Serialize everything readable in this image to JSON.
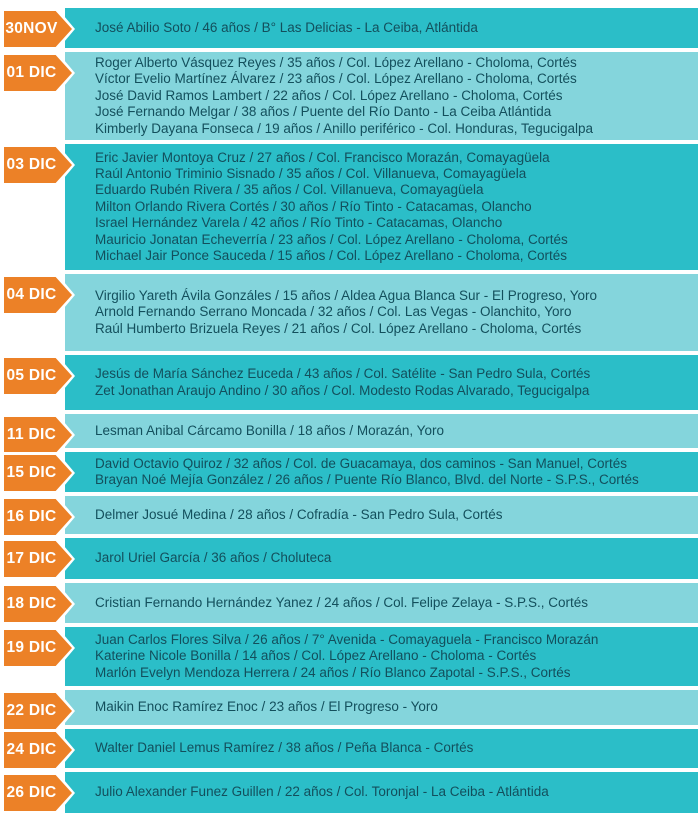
{
  "colors": {
    "orange": "#EC8127",
    "teal_dark": "#2BBEC8",
    "teal_light": "#84D5DC",
    "text": "#134F5C",
    "badge_text": "#FFFFFF"
  },
  "timeline": {
    "entries": [
      {
        "date": "30NOV",
        "tone": "dark",
        "lines": [
          "José Abilio Soto / 46 años / B° Las Delicias - La Ceiba, Atlántida"
        ]
      },
      {
        "date": "01 DIC",
        "tone": "light",
        "lines": [
          "Roger Alberto Vásquez Reyes / 35 años / Col. López Arellano - Choloma, Cortés",
          "Víctor Evelio Martínez Álvarez / 23 años / Col. López Arellano - Choloma, Cortés",
          "José David Ramos Lambert / 22 años / Col. López Arellano - Choloma, Cortés",
          "José Fernando Melgar / 38 años / Puente del Río Danto - La Ceiba Atlántida",
          "Kimberly Dayana Fonseca / 19 años / Anillo periférico - Col. Honduras, Tegucigalpa"
        ]
      },
      {
        "date": "03 DIC",
        "tone": "dark",
        "lines": [
          "Eric Javier Montoya Cruz / 27 años / Col. Francisco Morazán, Comayagüela",
          "Raúl Antonio Triminio Sisnado / 35 años / Col. Villanueva, Comayagüela",
          "Eduardo Rubén Rivera / 35 años / Col. Villanueva, Comayagüela",
          "Milton Orlando Rivera Cortés / 30 años / Río Tinto - Catacamas, Olancho",
          "Israel Hernández Varela / 42 años / Río Tinto - Catacamas, Olancho",
          "Mauricio Jonatan Echeverría / 23 años / Col. López Arellano - Choloma, Cortés",
          "Michael Jair Ponce Sauceda / 15 años / Col. López Arellano - Choloma, Cortés"
        ]
      },
      {
        "date": "04 DIC",
        "tone": "light",
        "lines": [
          "Virgilio Yareth Ávila Gonzáles / 15 años / Aldea Agua Blanca Sur - El Progreso, Yoro",
          "Arnold Fernando Serrano Moncada / 32 años / Col. Las Vegas - Olanchito, Yoro",
          "Raúl Humberto Brizuela Reyes / 21 años / Col. López Arellano - Choloma, Cortés"
        ]
      },
      {
        "date": "05 DIC",
        "tone": "dark",
        "lines": [
          "Jesús de María Sánchez Euceda / 43 años / Col. Satélite - San Pedro Sula, Cortés",
          "Zet Jonathan Araujo Andino / 30 años / Col. Modesto Rodas Alvarado, Tegucigalpa"
        ]
      },
      {
        "date": "11 DIC",
        "tone": "light",
        "lines": [
          "Lesman Anibal Cárcamo Bonilla / 18 años / Morazán, Yoro"
        ]
      },
      {
        "date": "15 DIC",
        "tone": "dark",
        "lines": [
          "David Octavio Quiroz / 32 años / Col. de Guacamaya, dos caminos - San Manuel, Cortés",
          "Brayan Noé Mejía González / 26 años / Puente Río Blanco, Blvd. del Norte - S.P.S., Cortés"
        ]
      },
      {
        "date": "16 DIC",
        "tone": "light",
        "lines": [
          "Delmer Josué Medina / 28 años / Cofradía - San Pedro Sula, Cortés"
        ]
      },
      {
        "date": "17 DIC",
        "tone": "dark",
        "lines": [
          "Jarol Uriel García / 36 años / Choluteca"
        ]
      },
      {
        "date": "18 DIC",
        "tone": "light",
        "lines": [
          "Cristian Fernando Hernández Yanez / 24 años / Col. Felipe Zelaya - S.P.S., Cortés"
        ]
      },
      {
        "date": "19 DIC",
        "tone": "dark",
        "lines": [
          "Juan Carlos Flores Silva / 26 años / 7° Avenida - Comayaguela - Francisco Morazán",
          "Katerine Nicole Bonilla / 14 años / Col. López Arellano - Choloma - Cortés",
          "Marlón Evelyn Mendoza Herrera / 24 años / Río Blanco Zapotal - S.P.S., Cortés"
        ]
      },
      {
        "date": "22 DIC",
        "tone": "light",
        "lines": [
          "Maikin Enoc Ramírez Enoc / 23 años / El Progreso - Yoro"
        ]
      },
      {
        "date": "24 DIC",
        "tone": "dark",
        "lines": [
          "Walter Daniel Lemus Ramírez / 38 años / Peña Blanca - Cortés"
        ]
      },
      {
        "date": "26 DIC",
        "tone": "dark",
        "lines": [
          "Julio Alexander Funez Guillen / 22 años / Col. Toronjal - La Ceiba - Atlántida"
        ]
      }
    ]
  }
}
